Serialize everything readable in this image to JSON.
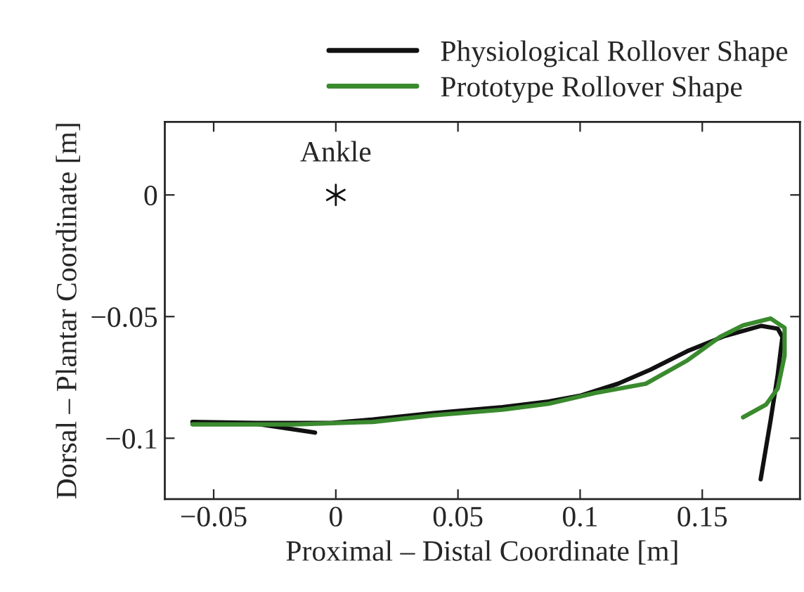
{
  "chart_data": {
    "type": "line",
    "xlabel": "Proximal – Distal Coordinate [m]",
    "ylabel": "Dorsal – Plantar Coordinate [m]",
    "xlim": [
      -0.07,
      0.19
    ],
    "ylim": [
      -0.125,
      0.03
    ],
    "xticks": [
      {
        "value": -0.05,
        "label": "−0.05"
      },
      0,
      0.05,
      0.1,
      0.15
    ],
    "yticks": [
      {
        "value": -0.1,
        "label": "−0.1"
      },
      {
        "value": -0.05,
        "label": "−0.05"
      },
      0
    ],
    "grid": false,
    "legend": "top",
    "line_style": "solid",
    "annotations": [
      {
        "text": "Ankle",
        "x": 0,
        "y": 0
      }
    ],
    "series": [
      {
        "name": "Physiological Rollover Shape",
        "color": "#111111",
        "x": [
          0.1739,
          0.178,
          0.1809,
          0.1828,
          0.1809,
          0.1742,
          0.1591,
          0.1439,
          0.1288,
          0.1155,
          0.1004,
          0.0871,
          0.0682,
          0.0398,
          0.0152,
          -0.0019,
          -0.0322,
          -0.0587,
          -0.0322,
          -0.0085
        ],
        "values": [
          -0.1169,
          -0.0925,
          -0.0738,
          -0.0584,
          -0.055,
          -0.0538,
          -0.058,
          -0.0642,
          -0.0718,
          -0.0776,
          -0.0824,
          -0.0849,
          -0.0872,
          -0.0897,
          -0.0923,
          -0.0937,
          -0.0937,
          -0.0933,
          -0.0941,
          -0.0977
        ]
      },
      {
        "name": "Prototype Rollover Shape",
        "color": "#3a8a2e",
        "x": [
          0.1667,
          0.1761,
          0.1809,
          0.1837,
          0.1837,
          0.178,
          0.1667,
          0.1572,
          0.1439,
          0.1269,
          0.1061,
          0.0871,
          0.0682,
          0.0398,
          0.0152,
          -0.017,
          -0.0587
        ],
        "values": [
          -0.0914,
          -0.0862,
          -0.0795,
          -0.0661,
          -0.0546,
          -0.0508,
          -0.0536,
          -0.0584,
          -0.068,
          -0.0776,
          -0.0814,
          -0.0858,
          -0.0883,
          -0.0906,
          -0.0933,
          -0.0943,
          -0.0943
        ]
      },
      {
        "type": "scatter",
        "color": "#111111",
        "marker": "cross",
        "x": [
          0
        ],
        "values": [
          0
        ]
      }
    ]
  }
}
